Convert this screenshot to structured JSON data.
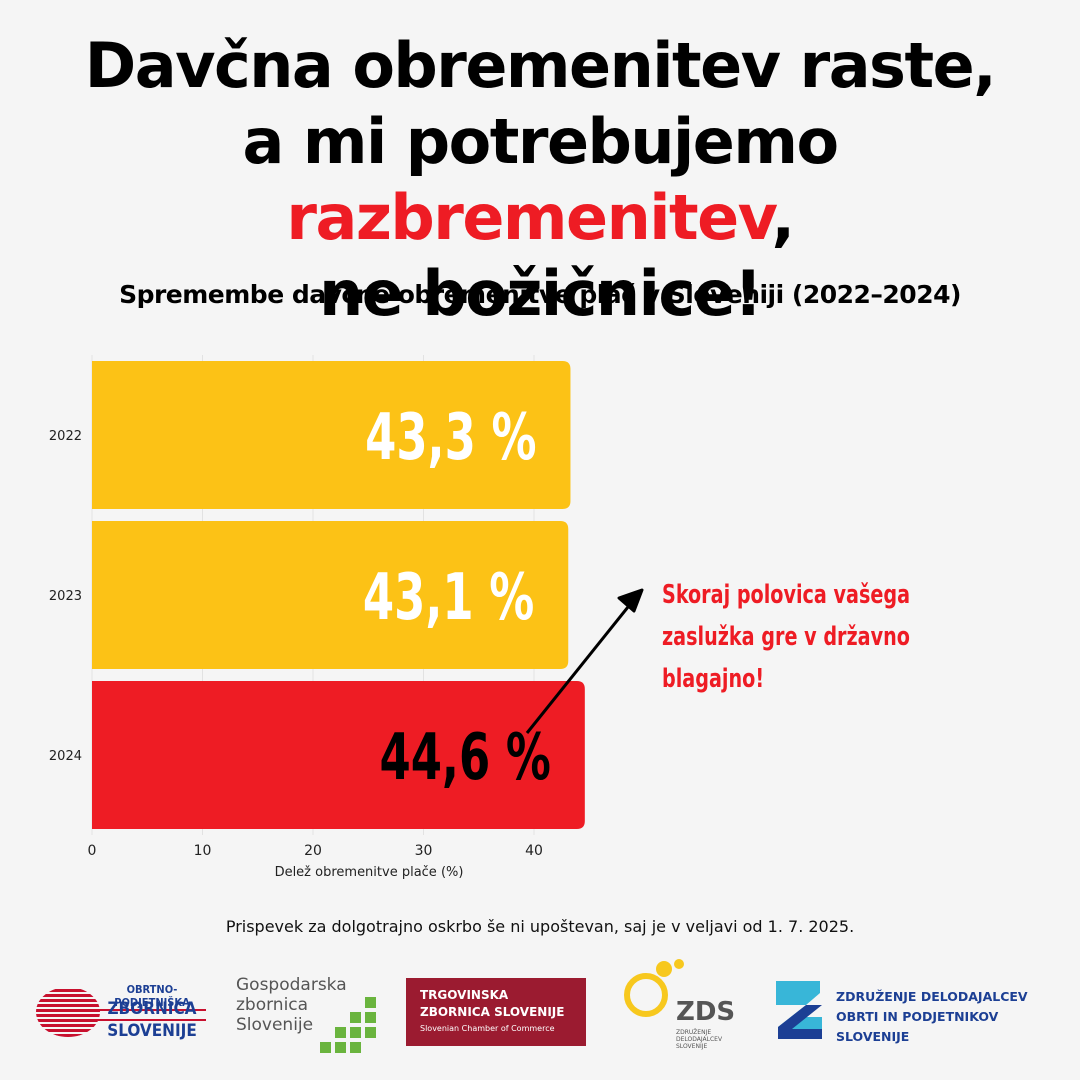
{
  "headline": {
    "line1": "Davčna obremenitev raste,",
    "line2_before": "a mi potrebujemo ",
    "line2_highlight": "razbremenitev",
    "line2_after": ",",
    "line3": "ne božičnice!"
  },
  "colors": {
    "accent_red": "#ee1c24",
    "bar_yellow": "#fcc216",
    "bar_red": "#ee1c24",
    "grid": "#e2e2e2"
  },
  "chart_data": {
    "type": "bar",
    "orientation": "horizontal",
    "title": "Spremembe davčne obremenitve plač v Sloveniji (2022–2024)",
    "categories": [
      "2022",
      "2023",
      "2024"
    ],
    "values": [
      43.3,
      43.1,
      44.6
    ],
    "value_labels": [
      "43,3 %",
      "43,1 %",
      "44,6 %"
    ],
    "bar_colors": [
      "#fcc216",
      "#fcc216",
      "#ee1c24"
    ],
    "label_colors": [
      "#ffffff",
      "#ffffff",
      "#000000"
    ],
    "xlabel": "Delež obremenitve plače (%)",
    "ylabel": "",
    "xlim": [
      0,
      45
    ],
    "xticks": [
      0,
      10,
      20,
      30,
      40
    ],
    "grid": true
  },
  "annotation": {
    "text_line1": "Skoraj polovica vašega",
    "text_line2": "zaslužka gre v državno",
    "text_line3": "blagajno!"
  },
  "footnote": "Prispevek za dolgotrajno oskrbo še ni upoštevan, saj je v veljavi od 1. 7. 2025.",
  "logos": {
    "ozs": {
      "line1": "OBRTNO-PODJETNIŠKA",
      "line2": "ZBORNICA",
      "line3": "SLOVENIJE"
    },
    "gzs": {
      "line1": "Gospodarska",
      "line2": "zbornica",
      "line3": "Slovenije"
    },
    "tzs": {
      "line1": "TRGOVINSKA",
      "line2": "ZBORNICA SLOVENIJE",
      "line3": "Slovenian Chamber of Commerce"
    },
    "zds": {
      "big": "ZDS",
      "small1": "ZDRUŽENJE",
      "small2": "DELODAJALCEV",
      "small3": "SLOVENIJE"
    },
    "zdop": {
      "line1": "ZDRUŽENJE DELODAJALCEV",
      "line2": "OBRTI IN PODJETNIKOV",
      "line3": "SLOVENIJE"
    }
  }
}
